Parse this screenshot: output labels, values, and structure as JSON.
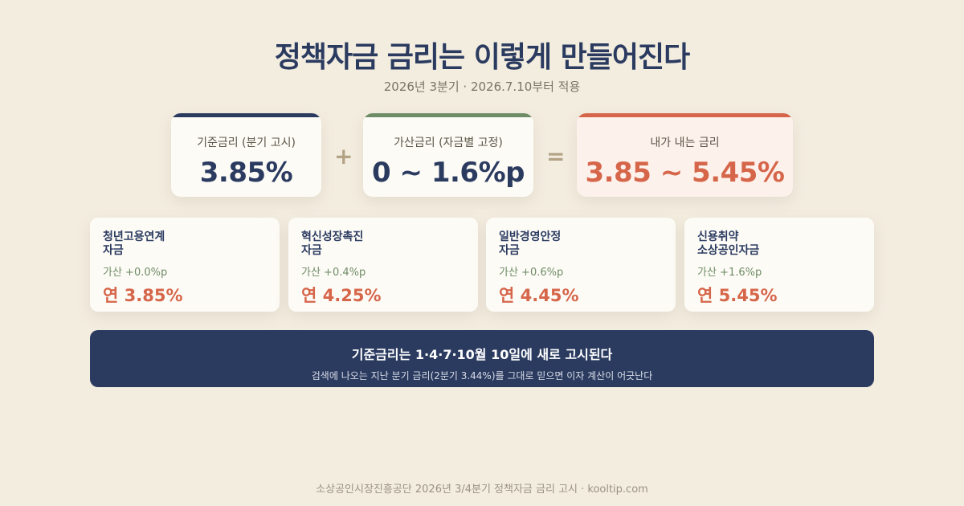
{
  "header": {
    "title": "정책자금 금리는 이렇게 만들어진다",
    "subtitle": "2026년 3분기 · 2026.7.10부터 적용"
  },
  "formula": {
    "base": {
      "label": "기준금리 (분기 고시)",
      "value": "3.85%"
    },
    "plus_symbol": "+",
    "addon": {
      "label": "가산금리 (자금별 고정)",
      "value": "0 ~ 1.6%p"
    },
    "equals_symbol": "=",
    "total": {
      "label": "내가 내는 금리",
      "value": "3.85 ~ 5.45%"
    }
  },
  "funds": [
    {
      "name": "청년고용연계\n자금",
      "addon": "가산 +0.0%p",
      "rate": "연 3.85%"
    },
    {
      "name": "혁신성장촉진\n자금",
      "addon": "가산 +0.4%p",
      "rate": "연 4.25%"
    },
    {
      "name": "일반경영안정\n자금",
      "addon": "가산 +0.6%p",
      "rate": "연 4.45%"
    },
    {
      "name": "신용취약\n소상공인자금",
      "addon": "가산 +1.6%p",
      "rate": "연 5.45%"
    }
  ],
  "notice": {
    "headline": "기준금리는 1·4·7·10월 10일에 새로 고시된다",
    "detail": "검색에 나오는 지난 분기 금리(2분기 3.44%)를 그대로 믿으면 이자 계산이 어긋난다"
  },
  "footer": "소상공인시장진흥공단 2026년 3/4분기 정책자금 금리 고시 · kooltip.com",
  "colors": {
    "navy": "#2b3b60",
    "green": "#6e8c66",
    "coral": "#d6664a",
    "background": "#f3ede0"
  }
}
